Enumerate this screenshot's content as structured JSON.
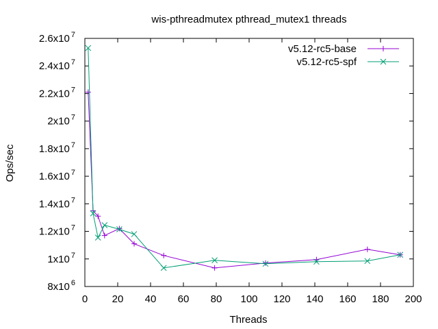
{
  "chart_data": {
    "type": "line",
    "title": "wis-pthreadmutex pthread_mutex1 threads",
    "xlabel": "Threads",
    "ylabel": "Ops/sec",
    "xlim": [
      0,
      200
    ],
    "ylim": [
      8000000,
      26000000
    ],
    "x_ticks": [
      0,
      20,
      40,
      60,
      80,
      100,
      120,
      140,
      160,
      180,
      200
    ],
    "y_ticks": [
      {
        "value": 8000000,
        "mantissa": "8x10",
        "exp": "6"
      },
      {
        "value": 10000000,
        "mantissa": "1x10",
        "exp": "7"
      },
      {
        "value": 12000000,
        "mantissa": "1.2x10",
        "exp": "7"
      },
      {
        "value": 14000000,
        "mantissa": "1.4x10",
        "exp": "7"
      },
      {
        "value": 16000000,
        "mantissa": "1.6x10",
        "exp": "7"
      },
      {
        "value": 18000000,
        "mantissa": "1.8x10",
        "exp": "7"
      },
      {
        "value": 20000000,
        "mantissa": "2x10",
        "exp": "7"
      },
      {
        "value": 22000000,
        "mantissa": "2.2x10",
        "exp": "7"
      },
      {
        "value": 24000000,
        "mantissa": "2.4x10",
        "exp": "7"
      },
      {
        "value": 26000000,
        "mantissa": "2.6x10",
        "exp": "7"
      }
    ],
    "grid": false,
    "legend_position": "top-right",
    "series": [
      {
        "name": "v5.12-rc5-base",
        "color": "#9400d3",
        "marker": "plus",
        "points": [
          [
            2,
            22100000
          ],
          [
            5,
            13500000
          ],
          [
            8,
            13100000
          ],
          [
            12,
            11700000
          ],
          [
            21,
            12200000
          ],
          [
            30,
            11100000
          ],
          [
            48,
            10250000
          ],
          [
            79,
            9350000
          ],
          [
            110,
            9700000
          ],
          [
            141,
            9950000
          ],
          [
            172,
            10700000
          ],
          [
            192,
            10300000
          ]
        ]
      },
      {
        "name": "v5.12-rc5-spf",
        "color": "#009e73",
        "marker": "cross",
        "points": [
          [
            2,
            25300000
          ],
          [
            5,
            13300000
          ],
          [
            8,
            11550000
          ],
          [
            12,
            12450000
          ],
          [
            21,
            12150000
          ],
          [
            30,
            11800000
          ],
          [
            48,
            9350000
          ],
          [
            79,
            9900000
          ],
          [
            110,
            9650000
          ],
          [
            141,
            9800000
          ],
          [
            172,
            9850000
          ],
          [
            192,
            10300000
          ]
        ]
      }
    ]
  }
}
